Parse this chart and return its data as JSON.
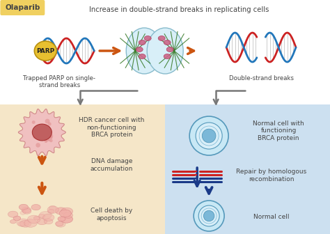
{
  "title_top": "Increase in double-strand breaks in replicating cells",
  "olaparib_label": "Olaparib",
  "parp_label": "PARP",
  "label_trapped": "Trapped PARP on single-\nstrand breaks",
  "label_double": "Double-strand breaks",
  "label_hdr": "HDR cancer cell with\nnon-functioning\nBRCA protein",
  "label_normal_cell": "Normal cell with\nfunctioning\nBRCA protein",
  "label_dna_damage": "DNA damage\naccumulation",
  "label_repair": "Repair by homologous\nrecombination",
  "label_death": "Cell death by\napoptosis",
  "label_normal": "Normal cell",
  "bg_left_color": "#f5e6c8",
  "bg_right_color": "#cce0f0",
  "bg_top_color": "#ffffff",
  "olaparib_bg": "#f0d060",
  "parp_bg": "#e8c030",
  "arrow_orange": "#cc5511",
  "arrow_gray": "#777777",
  "arrow_blue_dark": "#1a3a88",
  "dna_red": "#cc2222",
  "dna_blue": "#1a3a88",
  "dna_teal": "#2277bb",
  "cell_pink_body": "#e8a0a0",
  "cell_pink_nucleus": "#c05050",
  "cell_pink_light": "#f0c8c8",
  "cell_blue_outer": "#88c8e8",
  "cell_blue_mid": "#b8ddf5",
  "cell_blue_inner": "#5599cc",
  "mitosis_bg": "#d8eff8",
  "mitosis_border": "#88bbcc",
  "text_dark": "#444444",
  "fontsize_title": 7.2,
  "fontsize_label": 6.2,
  "fontsize_olaparib": 7.5,
  "fontsize_parp": 6.5
}
